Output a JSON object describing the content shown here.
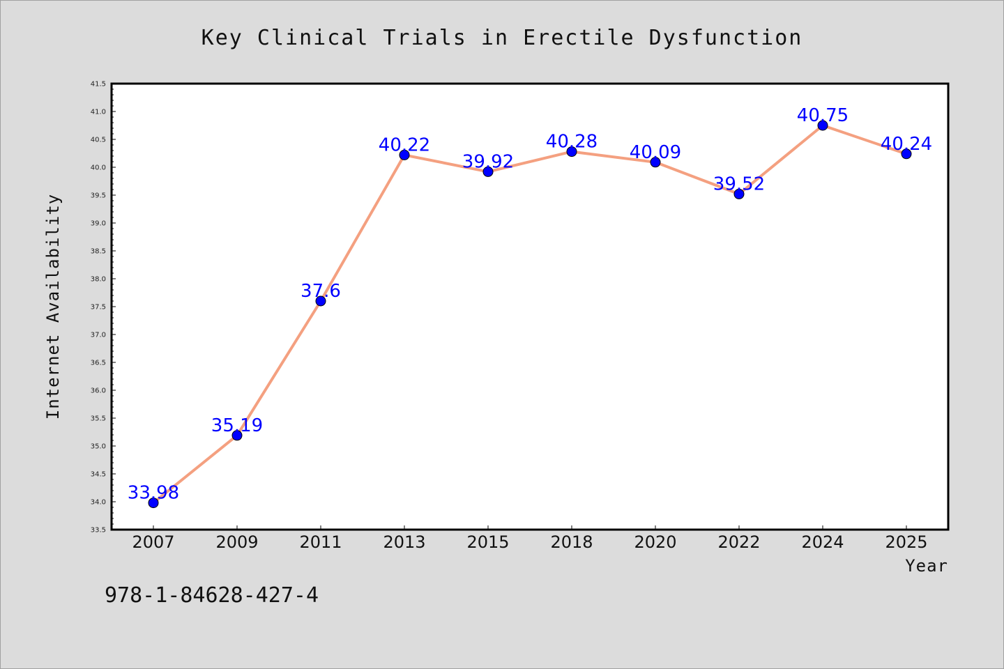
{
  "footer": {
    "code": "978-1-84628-427-4"
  },
  "chart_data": {
    "type": "line",
    "title": "Key Clinical Trials in Erectile Dysfunction",
    "xlabel": "Year",
    "ylabel": "Internet Availability",
    "categories": [
      "2007",
      "2009",
      "2011",
      "2013",
      "2015",
      "2018",
      "2020",
      "2022",
      "2024",
      "2025"
    ],
    "series": [
      {
        "values": [
          33.98,
          35.19,
          37.6,
          40.22,
          39.92,
          40.28,
          40.09,
          39.52,
          40.75,
          40.24
        ],
        "labels": [
          "33.98",
          "35.19",
          "37.6",
          "40.22",
          "39.92",
          "40.28",
          "40.09",
          "39.52",
          "40.75",
          "40.24"
        ],
        "line_color": "#f4a080",
        "marker_color": "#0000ff"
      }
    ],
    "ylim": [
      33.5,
      41.5
    ],
    "yticks": [
      "33.5",
      "34.0",
      "34.5",
      "35.0",
      "35.5",
      "36.0",
      "36.5",
      "37.0",
      "37.5",
      "38.0",
      "38.5",
      "39.0",
      "39.5",
      "40.0",
      "40.5",
      "41.0",
      "41.5"
    ],
    "grid": false,
    "legend": "none"
  }
}
